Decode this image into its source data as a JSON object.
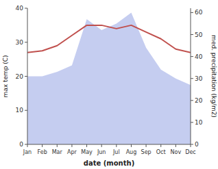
{
  "chart_data": {
    "type": "line",
    "xlabel": "date (month)",
    "ylabel": "max temp (C)",
    "y2label": "med. precipitation (kg/m2)",
    "categories": [
      "Jan",
      "Feb",
      "Mar",
      "Apr",
      "May",
      "Jun",
      "Jul",
      "Aug",
      "Sep",
      "Oct",
      "Nov",
      "Dec"
    ],
    "series": [
      {
        "type": "area",
        "axis": "y2",
        "color": "#c5cdf0",
        "values": [
          31,
          31,
          33,
          36,
          57,
          52,
          55,
          60,
          44,
          34,
          30,
          27
        ]
      },
      {
        "type": "line",
        "color": "#c0504d",
        "values": [
          27,
          27.5,
          29,
          32,
          35,
          35,
          34,
          35,
          33,
          31,
          28,
          27
        ]
      }
    ],
    "ylim": [
      0,
      40
    ],
    "yticks": [
      0,
      10,
      20,
      30,
      40
    ],
    "y2lim": [
      0,
      62
    ],
    "y2ticks": [
      0,
      10,
      20,
      30,
      40,
      50,
      60
    ],
    "grid": false
  }
}
